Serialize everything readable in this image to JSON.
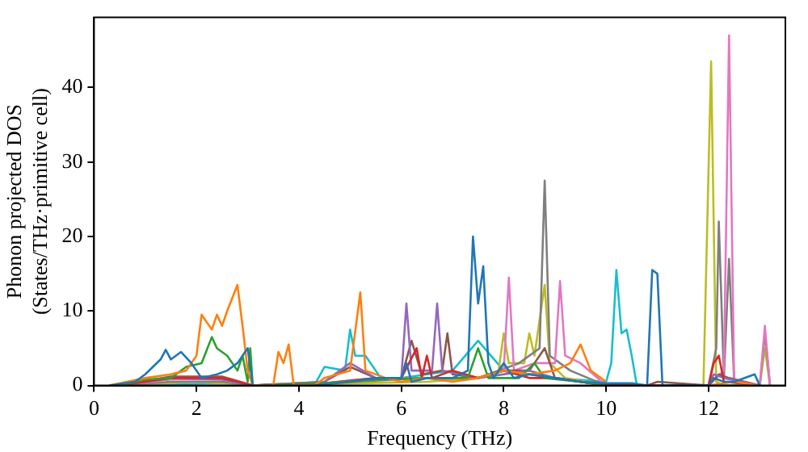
{
  "chart_data": {
    "type": "line",
    "xlabel": "Frequency (THz)",
    "ylabel": "Phonon projected DOS\n(States/THz·primitive cell)",
    "xlim": [
      0,
      13.5
    ],
    "xticks": [
      0,
      2,
      4,
      6,
      8,
      10,
      12
    ],
    "ylim": [
      0,
      49.4
    ],
    "yticks": [
      0,
      10,
      20,
      30,
      40
    ],
    "grid": false,
    "legend": false,
    "marker": "none",
    "line_style": "solid",
    "series": [
      {
        "color": "#1f77b4",
        "x": [
          0.3,
          0.8,
          1.0,
          1.3,
          1.4,
          1.5,
          1.7,
          1.9,
          2.1,
          2.4,
          2.6,
          2.8,
          3.0,
          3.1,
          3.5,
          4.3,
          5.0,
          5.5,
          6.0,
          6.1,
          6.2,
          6.5,
          7.0,
          7.3,
          7.4,
          7.5,
          7.6,
          7.7,
          7.8,
          8.0,
          8.2,
          8.5,
          9.0,
          9.5,
          10.0,
          10.5,
          10.8,
          10.9,
          11.0,
          11.1,
          12.0,
          12.1,
          12.3,
          12.5,
          12.9,
          13.0
        ],
        "values": [
          0,
          0.5,
          1.5,
          3.5,
          4.8,
          3.5,
          4.5,
          3,
          1,
          1.5,
          2,
          3,
          5,
          0,
          null,
          0,
          0.5,
          1,
          1,
          3,
          0.5,
          1,
          1,
          2,
          20,
          11,
          16,
          3,
          1,
          3,
          1,
          1.5,
          1,
          0.5,
          0.3,
          0.3,
          0,
          15.5,
          15,
          0,
          0,
          1,
          0.5,
          0.5,
          1.5,
          0
        ]
      },
      {
        "color": "#ff7f0e",
        "x": [
          0.3,
          1.0,
          1.5,
          1.8,
          2.0,
          2.1,
          2.3,
          2.4,
          2.5,
          2.6,
          2.8,
          2.9,
          3.0,
          3.1,
          3.5,
          3.6,
          3.7,
          3.8,
          3.9,
          4.3,
          4.5,
          5.0,
          5.2,
          5.3,
          5.7,
          6.0,
          6.5,
          7.0,
          7.5,
          8.0,
          8.5,
          9.0,
          9.3,
          9.5,
          9.7,
          10.0,
          11.0,
          12.0,
          12.5,
          13.0
        ],
        "values": [
          0,
          1,
          1.5,
          2,
          4,
          9.5,
          7.5,
          9.5,
          8,
          10,
          13.5,
          8,
          2,
          0,
          0,
          4.5,
          3,
          5.5,
          0,
          0,
          1,
          2,
          12.5,
          2,
          1,
          0.5,
          1,
          0.5,
          1,
          2,
          1.5,
          2,
          3,
          5.5,
          2,
          0.5,
          null,
          0,
          0.5,
          0
        ]
      },
      {
        "color": "#2ca02c",
        "x": [
          0.5,
          1.0,
          1.5,
          1.8,
          2.1,
          2.3,
          2.4,
          2.6,
          2.8,
          2.9,
          3.0,
          3.05,
          3.1,
          4.5,
          5.5,
          6.5,
          7.3,
          7.5,
          7.7,
          8.3,
          8.6,
          8.8,
          9.5,
          10.0
        ],
        "values": [
          0,
          0.8,
          1,
          2.5,
          3,
          6.5,
          5,
          4,
          2,
          4,
          0.5,
          5,
          0,
          0.3,
          0.8,
          1,
          1,
          5,
          1,
          1,
          3,
          1,
          0.5,
          0
        ]
      },
      {
        "color": "#d62728",
        "x": [
          0.5,
          1.5,
          2.5,
          3.1,
          4.5,
          5.5,
          6.0,
          6.3,
          6.4,
          6.5,
          6.6,
          7.0,
          7.5,
          8.0,
          8.5,
          9.0,
          10.0,
          12.0,
          12.1,
          12.2,
          12.3,
          13.0
        ],
        "values": [
          0,
          1,
          1,
          0,
          0.3,
          1,
          1,
          5,
          1,
          4,
          1,
          2,
          1,
          2,
          1,
          1,
          0,
          0,
          3,
          4,
          0.5,
          0
        ]
      },
      {
        "color": "#9467bd",
        "x": [
          0.5,
          1.5,
          2.5,
          3.1,
          4.5,
          5.0,
          5.5,
          6.0,
          6.1,
          6.2,
          6.6,
          6.7,
          6.8,
          7.5,
          8.5,
          9.0,
          10.0,
          12.0,
          12.1,
          12.3,
          13.0
        ],
        "values": [
          0,
          1,
          0.8,
          0,
          0.5,
          3,
          1,
          1,
          11,
          2,
          2,
          11,
          2,
          1,
          2,
          1,
          0,
          0,
          1.5,
          1,
          0
        ]
      },
      {
        "color": "#8c564b",
        "x": [
          0.5,
          1.5,
          2.5,
          3.1,
          4.5,
          5.0,
          5.5,
          6.0,
          6.2,
          6.4,
          6.8,
          6.9,
          7.0,
          7.5,
          8.0,
          8.5,
          8.8,
          9.0,
          10.0,
          10.8,
          11.0,
          12.0,
          12.2,
          12.4,
          13.0
        ],
        "values": [
          0,
          1.2,
          1.2,
          0,
          0.5,
          2.5,
          1,
          1,
          6,
          1.5,
          2,
          7,
          1.5,
          1,
          2,
          2,
          5,
          1,
          0,
          0,
          0.5,
          0,
          1.5,
          1,
          0
        ]
      },
      {
        "color": "#e377c2",
        "x": [
          0.5,
          1.5,
          2.5,
          3.1,
          4.5,
          5.5,
          6.5,
          7.5,
          8.0,
          8.1,
          8.2,
          8.6,
          9.0,
          9.1,
          9.2,
          9.5,
          10.0,
          12.0,
          12.3,
          12.4,
          12.5,
          13.0,
          13.1,
          13.2
        ],
        "values": [
          0,
          0.8,
          0.8,
          0,
          0.3,
          1,
          1,
          1,
          2,
          14.5,
          2,
          3,
          3,
          14,
          4,
          3,
          0,
          0,
          2,
          47,
          0.5,
          0,
          8,
          0
        ]
      },
      {
        "color": "#7f7f7f",
        "x": [
          0.5,
          1.5,
          2.5,
          3.1,
          4.5,
          6.5,
          7.5,
          8.3,
          8.7,
          8.8,
          8.9,
          9.3,
          10.0,
          12.0,
          12.15,
          12.2,
          12.3,
          12.4,
          12.5,
          13.0,
          13.1,
          13.2
        ],
        "values": [
          0,
          0.5,
          0.5,
          0,
          0.3,
          1,
          1,
          3,
          5,
          27.5,
          4,
          2,
          0,
          0,
          5,
          22,
          1,
          17,
          0.5,
          0,
          7,
          0
        ]
      },
      {
        "color": "#bcbd22",
        "x": [
          0.5,
          2.0,
          3.1,
          6.5,
          7.5,
          7.9,
          8.0,
          8.1,
          8.4,
          8.5,
          8.6,
          8.8,
          8.9,
          9.2,
          10.0,
          11.9,
          12.05,
          12.15,
          12.3,
          13.0,
          13.1,
          13.2
        ],
        "values": [
          0,
          0.5,
          0,
          0.5,
          1,
          2,
          7,
          3,
          3,
          7,
          4,
          13.5,
          3,
          1,
          0,
          0,
          43.5,
          0.5,
          0,
          0,
          5,
          0
        ]
      },
      {
        "color": "#17becf",
        "x": [
          0.5,
          2.5,
          3.1,
          4.3,
          4.5,
          4.9,
          5.0,
          5.1,
          5.3,
          5.6,
          6.0,
          7.0,
          7.5,
          8.0,
          9.0,
          10.0,
          10.1,
          10.2,
          10.3,
          10.4,
          10.5,
          10.6,
          12.0,
          13.0
        ],
        "values": [
          0,
          0.3,
          0,
          0,
          2.5,
          2,
          7.5,
          4,
          4,
          1,
          1,
          2,
          6,
          2,
          1,
          0.5,
          3,
          15.5,
          7,
          7.5,
          4,
          0,
          0,
          0
        ]
      }
    ]
  }
}
